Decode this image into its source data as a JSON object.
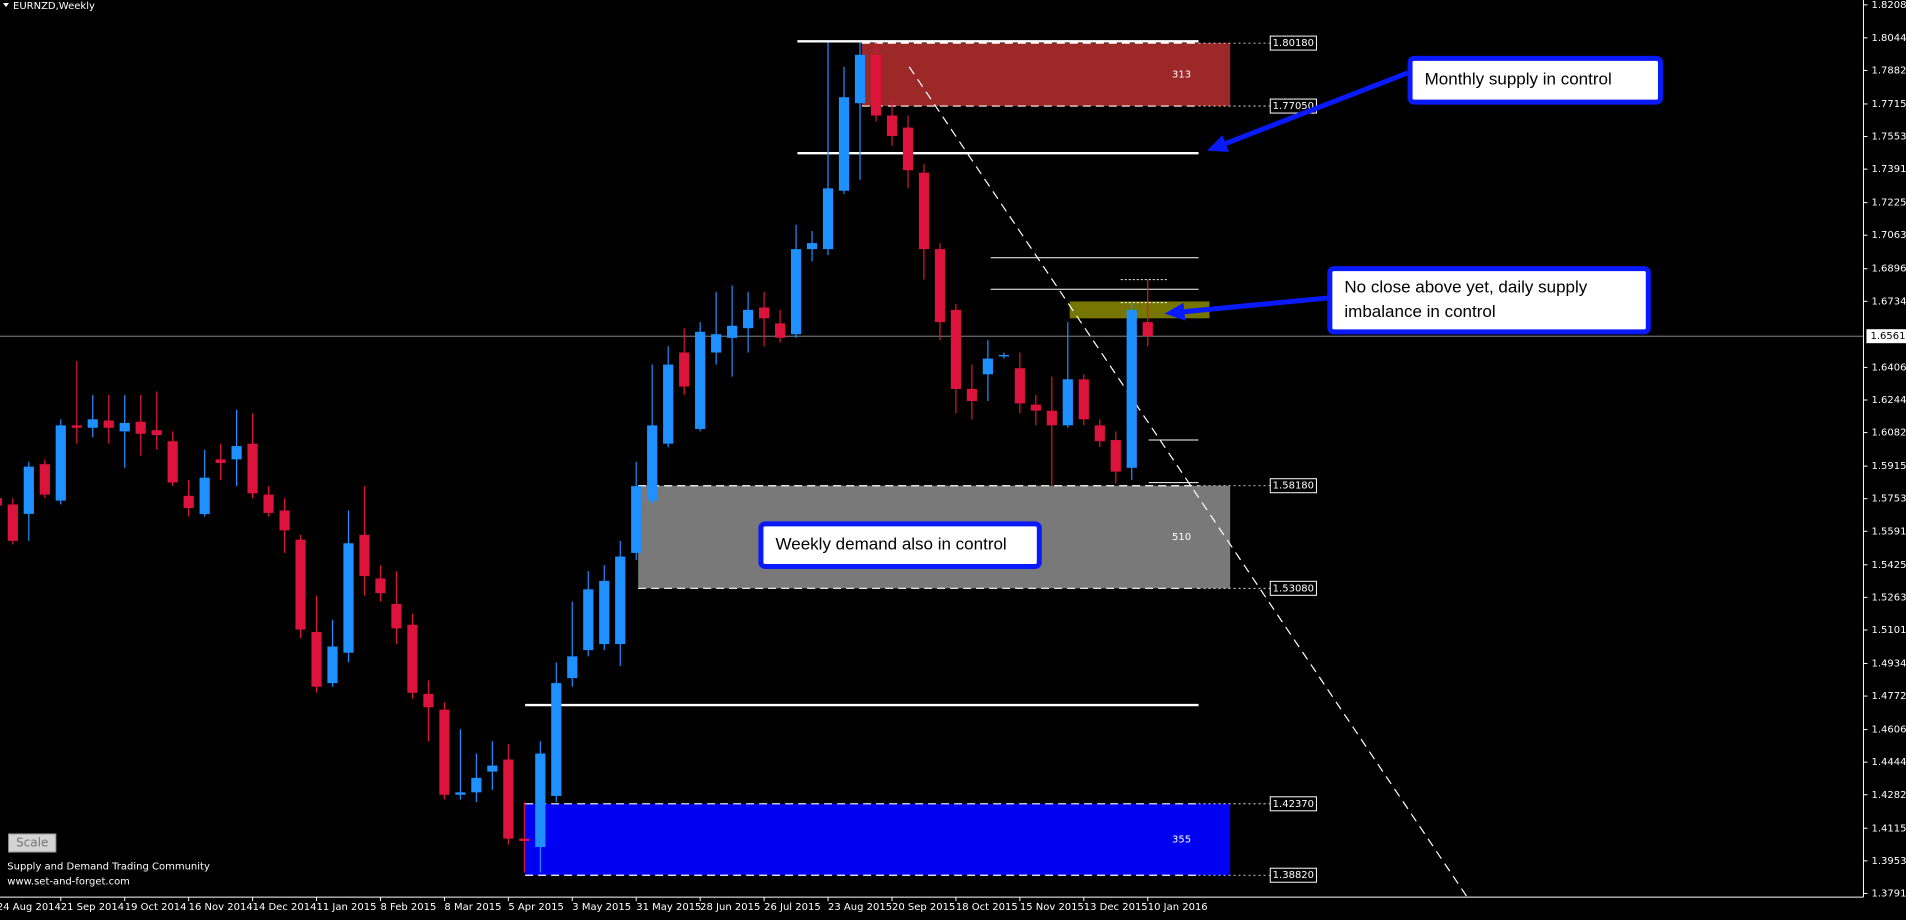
{
  "chart_data": {
    "type": "candlestick",
    "title": "EURNZD,Weekly",
    "categories": [
      "24 Aug 2014",
      null,
      null,
      null,
      "21 Sep 2014",
      null,
      null,
      null,
      "19 Oct 2014",
      null,
      null,
      null,
      "16 Nov 2014",
      null,
      null,
      null,
      "14 Dec 2014",
      null,
      null,
      null,
      "11 Jan 2015",
      null,
      null,
      null,
      "8 Feb 2015",
      null,
      null,
      null,
      "8 Mar 2015",
      null,
      null,
      null,
      "5 Apr 2015",
      null,
      null,
      null,
      "3 May 2015",
      null,
      null,
      null,
      "31 May 2015",
      null,
      null,
      null,
      "28 Jun 2015",
      null,
      null,
      null,
      "26 Jul 2015",
      null,
      null,
      null,
      "23 Aug 2015",
      null,
      null,
      null,
      "20 Sep 2015",
      null,
      null,
      null,
      "18 Oct 2015",
      null,
      null,
      null,
      "15 Nov 2015",
      null,
      null,
      null,
      "13 Dec 2015",
      null,
      null,
      null,
      "10 Jan 2016"
    ],
    "open": [
      1.5756,
      1.5725,
      1.5678,
      1.5925,
      1.5744,
      1.6118,
      1.6106,
      1.6142,
      1.6088,
      1.6136,
      1.6094,
      1.6039,
      1.5768,
      1.5677,
      1.5949,
      1.5949,
      1.6027,
      1.5774,
      1.5695,
      1.555,
      1.5091,
      1.4837,
      1.4988,
      1.5574,
      1.5357,
      1.523,
      1.5127,
      1.4783,
      1.4705,
      1.4282,
      1.4294,
      1.4397,
      1.4457,
      1.4064,
      1.4022,
      1.4276,
      1.4862,
      1.5001,
      1.5031,
      1.5031,
      1.5484,
      1.5744,
      1.6027,
      1.648,
      1.61,
      1.648,
      1.6553,
      1.6601,
      1.6704,
      1.6625,
      1.6571,
      1.6994,
      1.6994,
      1.7284,
      1.7719,
      1.796,
      1.7658,
      1.7598,
      1.7374,
      1.6994,
      1.6692,
      1.6299,
      1.6372,
      1.6462,
      1.6402,
      1.6221,
      1.6191,
      1.6118,
      1.6347,
      1.6118,
      1.6045,
      1.5907,
      1.6631
    ],
    "high": [
      1.5786,
      1.5756,
      1.5937,
      1.5949,
      1.6148,
      1.6438,
      1.6269,
      1.6269,
      1.6269,
      1.6269,
      1.6287,
      1.6088,
      1.5846,
      1.5997,
      1.6027,
      1.6196,
      1.6178,
      1.5816,
      1.5756,
      1.5574,
      1.5272,
      1.5152,
      1.5695,
      1.5816,
      1.5423,
      1.5393,
      1.5182,
      1.485,
      1.4741,
      1.4608,
      1.4487,
      1.4548,
      1.4535,
      1.4246,
      1.4548,
      1.494,
      1.5242,
      1.5393,
      1.5423,
      1.5544,
      1.5937,
      1.642,
      1.6511,
      1.6601,
      1.6631,
      1.6782,
      1.6813,
      1.6782,
      1.6782,
      1.6692,
      1.7115,
      1.7084,
      1.8021,
      1.79,
      1.8021,
      1.8021,
      1.7737,
      1.7658,
      1.7418,
      1.7024,
      1.6722,
      1.642,
      1.6541,
      1.648,
      1.648,
      1.6269,
      1.636,
      1.6631,
      1.6372,
      1.6148,
      1.6088,
      1.6722,
      1.6843
    ],
    "low": [
      1.5695,
      1.5526,
      1.5544,
      1.5756,
      1.5725,
      1.6027,
      1.6058,
      1.6027,
      1.5907,
      1.5967,
      1.5997,
      1.5816,
      1.5665,
      1.5665,
      1.5846,
      1.5816,
      1.5756,
      1.5665,
      1.5484,
      1.5061,
      1.4789,
      1.4819,
      1.494,
      1.5272,
      1.5242,
      1.5031,
      1.4759,
      1.4548,
      1.4258,
      1.4258,
      1.4246,
      1.4306,
      1.4034,
      1.3895,
      1.3895,
      1.4246,
      1.4819,
      1.497,
      1.5001,
      1.4922,
      1.5448,
      1.5725,
      1.6009,
      1.6269,
      1.6088,
      1.642,
      1.636,
      1.648,
      1.6511,
      1.6529,
      1.6553,
      1.6933,
      1.6964,
      1.7268,
      1.7338,
      1.7628,
      1.7507,
      1.7296,
      1.6843,
      1.6541,
      1.6178,
      1.6148,
      1.6239,
      1.645,
      1.6178,
      1.6118,
      1.5816,
      1.6106,
      1.6118,
      1.6009,
      1.5828,
      1.5846,
      1.6511
    ],
    "close": [
      1.5719,
      1.5544,
      1.5913,
      1.5774,
      1.6118,
      1.6106,
      1.6148,
      1.6106,
      1.613,
      1.6076,
      1.607,
      1.5834,
      1.5707,
      1.5858,
      1.5931,
      1.6015,
      1.578,
      1.5683,
      1.5596,
      1.5103,
      1.4819,
      1.5019,
      1.5532,
      1.5369,
      1.5284,
      1.5109,
      1.4789,
      1.4717,
      1.4282,
      1.4294,
      1.4366,
      1.4427,
      1.4064,
      1.4052,
      1.4487,
      1.4837,
      1.497,
      1.5303,
      1.5345,
      1.5466,
      1.5816,
      1.6118,
      1.642,
      1.6311,
      1.6583,
      1.6571,
      1.6613,
      1.6692,
      1.665,
      1.6553,
      1.6994,
      1.7024,
      1.7296,
      1.7749,
      1.796,
      1.7658,
      1.7556,
      1.7386,
      1.6994,
      1.6631,
      1.6299,
      1.6239,
      1.645,
      1.6468,
      1.6227,
      1.6191,
      1.6118,
      1.6347,
      1.6148,
      1.6039,
      1.5888,
      1.6692,
      1.65612
    ],
    "up_color": "#1e90ff",
    "down_color": "#dc143c",
    "last_price": 1.65612,
    "ylim": [
      1.37915,
      1.8208
    ],
    "yticks": [
      {
        "value": 1.8208,
        "label": "1.82080"
      },
      {
        "value": 1.8044,
        "label": "1.80440"
      },
      {
        "value": 1.7882,
        "label": "1.78820"
      },
      1.77155,
      1.75535,
      1.73915,
      {
        "value": 1.7225,
        "label": "1.72250"
      },
      {
        "value": 1.7063,
        "label": "1.70630"
      },
      1.68965,
      1.67345,
      {
        "value": 1.6406,
        "label": "1.64060"
      },
      {
        "value": 1.6244,
        "label": "1.62440"
      },
      {
        "value": 1.6082,
        "label": "1.60820"
      },
      1.59155,
      1.57535,
      1.55915,
      {
        "value": 1.5425,
        "label": "1.54250"
      },
      {
        "value": 1.5263,
        "label": "1.52630"
      },
      {
        "value": 1.5101,
        "label": "1.51010"
      },
      1.49345,
      1.47725,
      {
        "value": 1.4606,
        "label": "1.46060"
      },
      {
        "value": 1.4444,
        "label": "1.44440"
      },
      {
        "value": 1.4282,
        "label": "1.42820"
      },
      1.41155,
      1.39535,
      1.37915
    ],
    "grid": false,
    "zones": [
      {
        "top": {
          "value": 1.8018,
          "label": "1.80180"
        },
        "bottom": {
          "value": 1.7705,
          "label": "1.77050"
        },
        "label": 313,
        "color": "#a52a2a"
      },
      {
        "top": {
          "value": 1.5818,
          "label": "1.58180"
        },
        "bottom": {
          "value": 1.5308,
          "label": "1.53080"
        },
        "label": 510,
        "color": "#808080"
      },
      {
        "top": {
          "value": 1.4237,
          "label": "1.42370"
        },
        "bottom": {
          "value": 1.3882,
          "label": "1.38820"
        },
        "label": 355,
        "color": "#0000ff"
      },
      {
        "top": 1.6734,
        "bottom": 1.665,
        "color": "#8b8b00"
      }
    ],
    "annotations": [
      {
        "text": [
          "Monthly supply in control"
        ]
      },
      {
        "text": [
          "No close above yet, daily supply",
          "imbalance in control"
        ]
      },
      {
        "text": [
          "Weekly demand also in control"
        ]
      }
    ],
    "scale_button": "Scale",
    "footer": [
      "Supply and Demand Trading Community",
      "www.set-and-forget.com"
    ]
  }
}
